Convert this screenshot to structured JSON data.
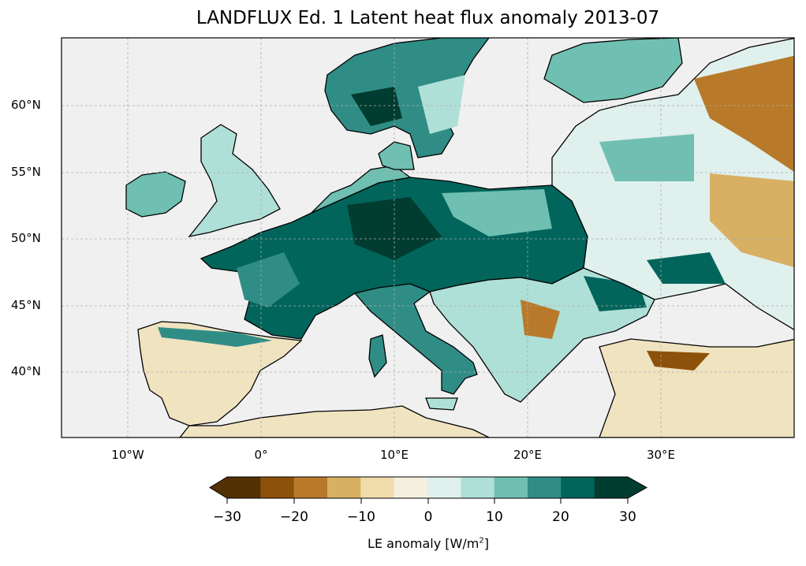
{
  "title": "LANDFLUX Ed. 1 Latent heat flux anomaly 2013-07",
  "chart_data": {
    "type": "heatmap",
    "title": "LANDFLUX Ed. 1 Latent heat flux anomaly 2013-07",
    "region": "Europe",
    "lon_range": [
      -15,
      40
    ],
    "lat_range": [
      35,
      65
    ],
    "x_ticks": [
      "10°W",
      "0°",
      "10°E",
      "20°E",
      "30°E"
    ],
    "y_ticks": [
      "60°N",
      "55°N",
      "50°N",
      "45°N",
      "40°N"
    ],
    "grid": true,
    "colorbar": {
      "label": "LE anomaly [W/m",
      "label_sup": "2",
      "label_end": "]",
      "levels": [
        -30,
        -25,
        -20,
        -15,
        -10,
        -5,
        0,
        5,
        10,
        15,
        20,
        25,
        30
      ],
      "tick_labels": [
        "−30",
        "−20",
        "−10",
        "0",
        "10",
        "20",
        "30"
      ],
      "colors": [
        "#543005",
        "#8c510a",
        "#b87a2a",
        "#d8b064",
        "#f0dcaa",
        "#f5efdf",
        "#dff0ed",
        "#afe0d8",
        "#6fbfb2",
        "#2f8d86",
        "#02655b",
        "#003c30"
      ],
      "extend": "both",
      "placement": "bottom"
    },
    "ocean_color": "#f0f0f0"
  }
}
